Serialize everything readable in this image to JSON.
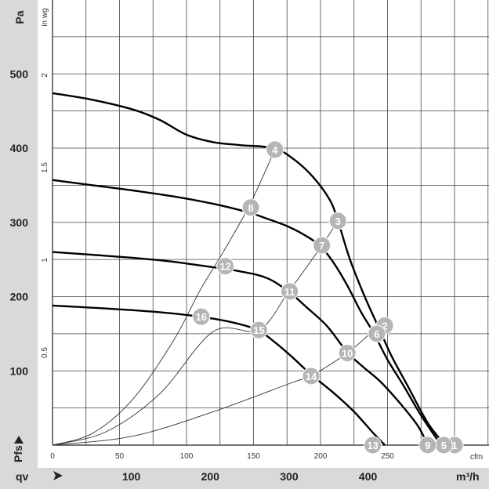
{
  "chart_data": {
    "type": "line",
    "x_axis_bottom": {
      "unit": "m³/h",
      "ticks": [
        100,
        200,
        300,
        400
      ],
      "label": "qv"
    },
    "x_axis_top": {
      "unit": "cfm",
      "ticks": [
        0,
        50,
        100,
        150,
        200,
        250
      ]
    },
    "y_axis_left": {
      "unit": "Pa",
      "ticks": [
        100,
        200,
        300,
        400,
        500
      ],
      "label": "Pfs"
    },
    "y_axis_right": {
      "unit": "in wg",
      "ticks": [
        "0.5",
        "1",
        "1.5",
        "2"
      ]
    },
    "xlim_cfm": [
      0,
      326
    ],
    "ylim_pa": [
      0,
      575
    ],
    "grid": true,
    "fan_curves": [
      {
        "name": "",
        "points_cfm_pa": [
          [
            0,
            474
          ],
          [
            30,
            465
          ],
          [
            60,
            452
          ],
          [
            80,
            438
          ],
          [
            100,
            418
          ],
          [
            120,
            408
          ],
          [
            140,
            404
          ],
          [
            165,
            400
          ],
          [
            180,
            385
          ],
          [
            195,
            360
          ],
          [
            207,
            330
          ],
          [
            213,
            302
          ],
          [
            222,
            250
          ],
          [
            233,
            200
          ],
          [
            243,
            160
          ],
          [
            253,
            120
          ],
          [
            265,
            80
          ],
          [
            280,
            30
          ],
          [
            293,
            0
          ]
        ]
      },
      {
        "name": "",
        "points_cfm_pa": [
          [
            0,
            357
          ],
          [
            30,
            350
          ],
          [
            60,
            343
          ],
          [
            90,
            335
          ],
          [
            120,
            325
          ],
          [
            147,
            313
          ],
          [
            160,
            305
          ],
          [
            175,
            295
          ],
          [
            188,
            283
          ],
          [
            200,
            268
          ],
          [
            210,
            245
          ],
          [
            220,
            215
          ],
          [
            230,
            180
          ],
          [
            240,
            150
          ],
          [
            250,
            115
          ],
          [
            262,
            80
          ],
          [
            275,
            40
          ],
          [
            290,
            0
          ]
        ]
      },
      {
        "name": "",
        "points_cfm_pa": [
          [
            0,
            260
          ],
          [
            40,
            255
          ],
          [
            80,
            249
          ],
          [
            110,
            242
          ],
          [
            140,
            234
          ],
          [
            160,
            225
          ],
          [
            176,
            207
          ],
          [
            190,
            185
          ],
          [
            205,
            160
          ],
          [
            220,
            125
          ],
          [
            232,
            105
          ],
          [
            245,
            85
          ],
          [
            260,
            55
          ],
          [
            273,
            25
          ],
          [
            280,
            0
          ]
        ]
      },
      {
        "name": "",
        "points_cfm_pa": [
          [
            0,
            188
          ],
          [
            40,
            184
          ],
          [
            80,
            179
          ],
          [
            110,
            173
          ],
          [
            135,
            165
          ],
          [
            153,
            155
          ],
          [
            165,
            140
          ],
          [
            178,
            120
          ],
          [
            193,
            95
          ],
          [
            210,
            70
          ],
          [
            225,
            45
          ],
          [
            240,
            15
          ],
          [
            248,
            0
          ]
        ]
      }
    ],
    "system_curves": [
      {
        "name": "",
        "points_cfm_pa": [
          [
            0,
            0
          ],
          [
            30,
            16
          ],
          [
            60,
            62
          ],
          [
            90,
            140
          ],
          [
            110,
            208
          ],
          [
            128,
            262
          ],
          [
            147,
            323
          ],
          [
            166,
            398
          ]
        ]
      },
      {
        "name": "",
        "points_cfm_pa": [
          [
            0,
            0
          ],
          [
            40,
            18
          ],
          [
            80,
            69
          ],
          [
            120,
            153
          ],
          [
            154,
            155
          ],
          [
            176,
            206
          ],
          [
            201,
            269
          ],
          [
            213,
            302
          ]
        ]
      },
      {
        "name": "",
        "points_cfm_pa": [
          [
            0,
            0
          ],
          [
            60,
            12
          ],
          [
            120,
            45
          ],
          [
            180,
            85
          ],
          [
            193,
            93
          ],
          [
            220,
            124
          ],
          [
            237,
            150
          ],
          [
            247,
            162
          ]
        ]
      }
    ],
    "operating_points": [
      {
        "label": "1",
        "cfm": 300,
        "pa": 0
      },
      {
        "label": "2",
        "cfm": 248,
        "pa": 161
      },
      {
        "label": "3",
        "cfm": 213,
        "pa": 302
      },
      {
        "label": "4",
        "cfm": 166,
        "pa": 398
      },
      {
        "label": "5",
        "cfm": 292,
        "pa": 0
      },
      {
        "label": "6",
        "cfm": 242,
        "pa": 150
      },
      {
        "label": "7",
        "cfm": 201,
        "pa": 269
      },
      {
        "label": "8",
        "cfm": 148,
        "pa": 320
      },
      {
        "label": "9",
        "cfm": 280,
        "pa": 0
      },
      {
        "label": "10",
        "cfm": 220,
        "pa": 124
      },
      {
        "label": "11",
        "cfm": 177,
        "pa": 207
      },
      {
        "label": "12",
        "cfm": 129,
        "pa": 241
      },
      {
        "label": "13",
        "cfm": 239,
        "pa": 0
      },
      {
        "label": "14",
        "cfm": 193,
        "pa": 93
      },
      {
        "label": "15",
        "cfm": 154,
        "pa": 155
      },
      {
        "label": "16",
        "cfm": 111,
        "pa": 173
      }
    ]
  }
}
